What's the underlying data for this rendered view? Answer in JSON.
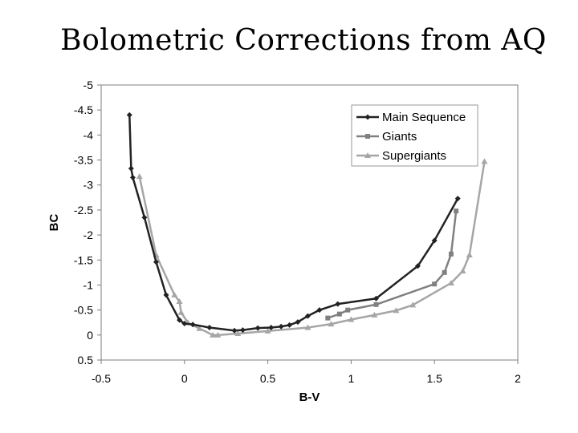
{
  "slide": {
    "title": "Bolometric Corrections from AQ"
  },
  "chart_data": {
    "type": "line",
    "title": "",
    "xlabel": "B-V",
    "ylabel": "BC",
    "xlim": [
      -0.5,
      2
    ],
    "ylim": [
      -5,
      0.5
    ],
    "y_inverted": true,
    "x_ticks": [
      -0.5,
      0,
      0.5,
      1,
      1.5,
      2
    ],
    "x_tick_labels": [
      "-0.5",
      "0",
      "0.5",
      "1",
      "1.5",
      "2"
    ],
    "y_ticks": [
      -5,
      -4.5,
      -4,
      -3.5,
      -3,
      -2.5,
      -2,
      -1.5,
      -1,
      -0.5,
      0,
      0.5
    ],
    "y_tick_labels": [
      "-5",
      "-4.5",
      "-4",
      "-3.5",
      "-3",
      "-2.5",
      "-2",
      "-1.5",
      "-1",
      "-0.5",
      "0",
      "0.5"
    ],
    "grid": false,
    "legend_position": "top-right",
    "series": [
      {
        "name": "Main Sequence",
        "color": "#222222",
        "marker": "diamond",
        "x": [
          -0.33,
          -0.32,
          -0.31,
          -0.24,
          -0.17,
          -0.11,
          -0.03,
          0.0,
          0.05,
          0.15,
          0.3,
          0.35,
          0.44,
          0.52,
          0.58,
          0.63,
          0.68,
          0.74,
          0.81,
          0.92,
          1.15,
          1.4,
          1.5,
          1.64
        ],
        "y": [
          -4.4,
          -3.33,
          -3.15,
          -2.35,
          -1.46,
          -0.8,
          -0.3,
          -0.23,
          -0.21,
          -0.15,
          -0.09,
          -0.1,
          -0.14,
          -0.15,
          -0.17,
          -0.2,
          -0.26,
          -0.38,
          -0.5,
          -0.62,
          -0.73,
          -1.38,
          -1.89,
          -2.73
        ]
      },
      {
        "name": "Giants",
        "color": "#808080",
        "marker": "square",
        "x": [
          0.86,
          0.93,
          0.98,
          1.15,
          1.5,
          1.56,
          1.6,
          1.63
        ],
        "y": [
          -0.34,
          -0.42,
          -0.5,
          -0.61,
          -1.02,
          -1.25,
          -1.62,
          -2.48
        ]
      },
      {
        "name": "Supergiants",
        "color": "#a6a6a6",
        "marker": "triangle",
        "x": [
          -0.27,
          -0.17,
          -0.06,
          -0.03,
          -0.02,
          0.02,
          0.09,
          0.17,
          0.2,
          0.32,
          0.5,
          0.74,
          0.88,
          1.0,
          1.14,
          1.27,
          1.37,
          1.6,
          1.67,
          1.71,
          1.8
        ],
        "y": [
          -3.17,
          -1.6,
          -0.8,
          -0.67,
          -0.45,
          -0.25,
          -0.13,
          0.0,
          0.0,
          -0.03,
          -0.08,
          -0.15,
          -0.22,
          -0.31,
          -0.4,
          -0.49,
          -0.6,
          -1.04,
          -1.28,
          -1.6,
          -3.47
        ]
      }
    ]
  }
}
